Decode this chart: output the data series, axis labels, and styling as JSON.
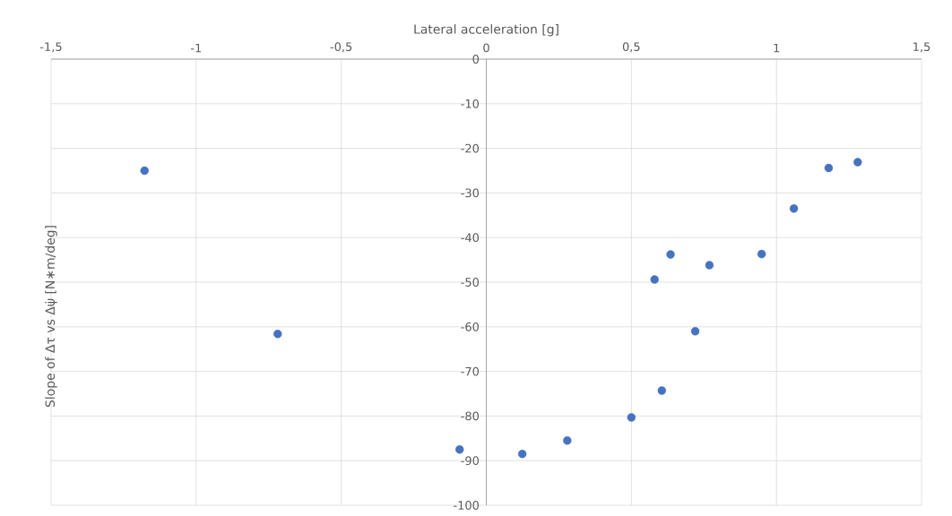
{
  "chart_data": {
    "type": "scatter",
    "xlabel": "Lateral acceleration [g]",
    "ylabel": "Slope of Δτ vs Δψ̇  [N∗m/deg]",
    "x": [
      -1.178,
      -0.719,
      -0.092,
      0.124,
      0.279,
      0.5,
      0.605,
      0.58,
      0.635,
      0.72,
      0.769,
      0.949,
      1.06,
      1.18,
      1.28
    ],
    "values": [
      -25.0,
      -61.6,
      -87.5,
      -88.5,
      -85.5,
      -80.3,
      -74.3,
      -49.4,
      -43.8,
      -61.0,
      -46.2,
      -43.7,
      -33.5,
      -24.4,
      -23.1
    ],
    "color": "#4472c4",
    "marker": "circle",
    "grid": true,
    "xlim": [
      -1.5,
      1.5
    ],
    "ylim": [
      -100,
      0
    ],
    "xticks": [
      {
        "value": -1.5,
        "label": "-1,5"
      },
      -1,
      {
        "value": -0.5,
        "label": "-0,5"
      },
      0,
      {
        "value": 0.5,
        "label": "0,5"
      },
      1,
      {
        "value": 1.5,
        "label": "1,5"
      }
    ],
    "yticks": [
      -100,
      -90,
      -80,
      -70,
      -60,
      -50,
      -40,
      -30,
      -20,
      -10,
      0
    ]
  }
}
